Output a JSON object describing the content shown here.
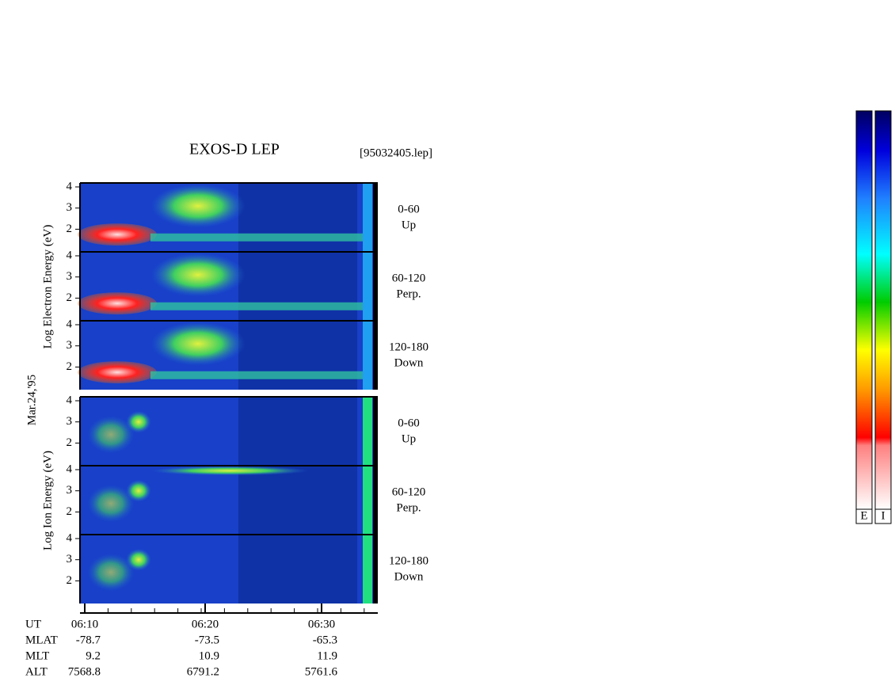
{
  "header": {
    "title": "EXOS-D LEP",
    "file": "[95032405.lep]",
    "date": "Mar.24,'95"
  },
  "electron": {
    "axis_label": "Log Electron Energy (eV)",
    "panels": [
      {
        "pitch": "0-60",
        "dir": "Up"
      },
      {
        "pitch": "60-120",
        "dir": "Perp."
      },
      {
        "pitch": "120-180",
        "dir": "Down"
      }
    ]
  },
  "ion": {
    "axis_label": "Log Ion Energy (eV)",
    "panels": [
      {
        "pitch": "0-60",
        "dir": "Up"
      },
      {
        "pitch": "60-120",
        "dir": "Perp."
      },
      {
        "pitch": "120-180",
        "dir": "Down"
      }
    ]
  },
  "yticks": [
    2,
    3,
    4
  ],
  "time_axis": {
    "label": "UT",
    "ticks": [
      "06:10",
      "06:20",
      "06:30"
    ]
  },
  "orbit": [
    [
      "MLAT",
      "-78.7",
      "-73.5",
      "-65.3"
    ],
    [
      "MLT",
      "9.2",
      "10.9",
      "11.9"
    ],
    [
      "ALT",
      "7568.8",
      "6791.2",
      "5761.6"
    ]
  ],
  "colorbars": [
    "E",
    "I"
  ]
}
